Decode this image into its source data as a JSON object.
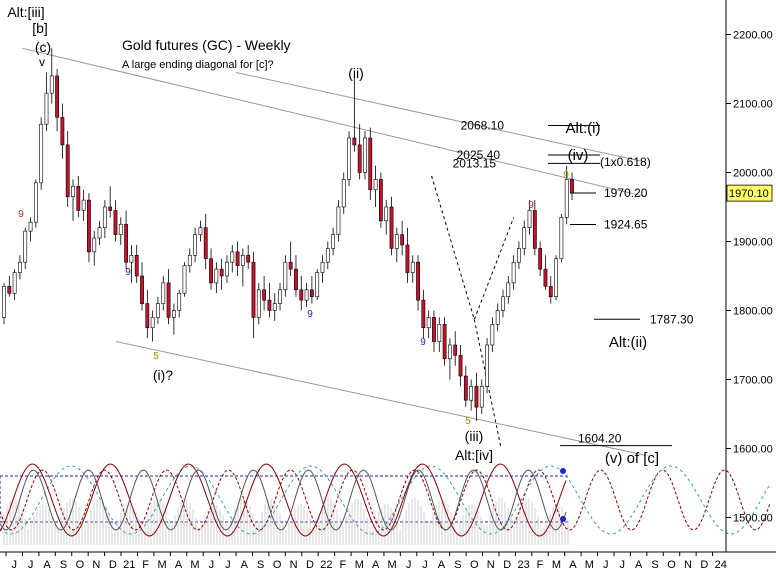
{
  "chart_data": {
    "type": "candlestick",
    "title": "Gold futures (GC) - Weekly",
    "subtitle": "A large ending diagonal for [c]?",
    "y_axis": {
      "ylim": [
        1450,
        2250
      ],
      "ticks": [
        1500,
        1600,
        1700,
        1800,
        1900,
        2000,
        2100,
        2200
      ],
      "tick_labels": [
        "1500.00",
        "1600.00",
        "1700.00",
        "1800.00",
        "1900.00",
        "2000.00",
        "2100.00",
        "2200.00"
      ],
      "last_price_label": "1970.10",
      "last_price": 1970.1
    },
    "x_axis": {
      "month_labels": [
        "J",
        "J",
        "A",
        "S",
        "O",
        "N",
        "D",
        "21",
        "F",
        "M",
        "A",
        "M",
        "J",
        "J",
        "A",
        "S",
        "O",
        "N",
        "D",
        "22",
        "F",
        "M",
        "A",
        "M",
        "J",
        "J",
        "A",
        "S",
        "O",
        "N",
        "D",
        "23",
        "F",
        "M",
        "A",
        "M",
        "J",
        "J",
        "A",
        "S",
        "O",
        "N",
        "D",
        "24"
      ]
    },
    "wave_labels": [
      {
        "text": "Alt:[iii]",
        "x": 0.0,
        "y": 2242
      },
      {
        "text": "[b]",
        "x": 0.0,
        "y": 2222
      },
      {
        "text": "(c)",
        "x": 0.5,
        "y": 2198
      },
      {
        "text": "v",
        "x": 0.5,
        "y": 2180
      },
      {
        "text": "(ii)",
        "x": 13.4,
        "y": 2158
      },
      {
        "text": "(i)?",
        "x": 6.4,
        "y": 1748
      },
      {
        "text": "(iii)",
        "x": 20.4,
        "y": 1640
      },
      {
        "text": "Alt:[iv]",
        "x": 20.4,
        "y": 1611
      },
      {
        "text": "Alt:(i)",
        "x": 26.0,
        "y": 2080
      },
      {
        "text": "(iv)",
        "x": 26.2,
        "y": 2042
      },
      {
        "text": "Alt:(ii)",
        "x": 28.0,
        "y": 1843
      },
      {
        "text": "(v) of [c]",
        "x": 28.0,
        "y": 1575
      }
    ],
    "count_labels": [
      {
        "text": "9",
        "color": "#d22222",
        "x": 0.3,
        "y": 1998
      },
      {
        "text": "9",
        "color": "#2222cc",
        "x": 5.1,
        "y": 1893
      },
      {
        "text": "5",
        "color": "#a08800",
        "x": 6.4,
        "y": 1765
      },
      {
        "text": "9",
        "color": "#2222cc",
        "x": 12.4,
        "y": 1800
      },
      {
        "text": "9",
        "color": "#2222cc",
        "x": 19.0,
        "y": 1760
      },
      {
        "text": "5",
        "color": "#a08800",
        "x": 20.4,
        "y": 1652
      },
      {
        "text": "9",
        "color": "#d22222",
        "x": 24.5,
        "y": 2012
      },
      {
        "text": "9",
        "color": "#a08800",
        "x": 25.6,
        "y": 2012
      }
    ],
    "price_targets": [
      {
        "label": "2068.10",
        "value": 2068.1
      },
      {
        "label": "2025.40",
        "value": 2025.4
      },
      {
        "label": "2013.15",
        "value": 2013.15
      },
      {
        "label": "(1x0.618)",
        "value": 2015
      },
      {
        "label": "1970.20",
        "value": 1970.2
      },
      {
        "label": "1924.65",
        "value": 1924.65
      },
      {
        "label": "1787.30",
        "value": 1787.3
      },
      {
        "label": "1604.20",
        "value": 1604.2
      }
    ],
    "channel_lines": [
      {
        "name": "upper",
        "points": [
          [
            0.5,
            2180
          ],
          [
            36.0,
            1965
          ]
        ]
      },
      {
        "name": "middle",
        "points": [
          [
            13.5,
            2145
          ],
          [
            36.0,
            2015
          ]
        ]
      },
      {
        "name": "lower",
        "points": [
          [
            6.2,
            1755
          ],
          [
            36.0,
            1590
          ]
        ]
      }
    ],
    "projection_path": [
      [
        25.4,
        1995
      ],
      [
        28.0,
        1787
      ],
      [
        30.4,
        1935
      ]
    ],
    "projection_path_2": [
      [
        28.0,
        1787
      ],
      [
        29.6,
        1604
      ]
    ],
    "ohlc": [
      [
        1790,
        1840,
        1780,
        1835
      ],
      [
        1835,
        1850,
        1820,
        1825
      ],
      [
        1825,
        1860,
        1815,
        1855
      ],
      [
        1855,
        1880,
        1845,
        1870
      ],
      [
        1870,
        1920,
        1860,
        1915
      ],
      [
        1915,
        1935,
        1900,
        1928
      ],
      [
        1928,
        1990,
        1920,
        1985
      ],
      [
        1985,
        2080,
        1975,
        2070
      ],
      [
        2070,
        2145,
        2060,
        2115
      ],
      [
        2115,
        2180,
        2100,
        2140
      ],
      [
        2140,
        2150,
        2060,
        2080
      ],
      [
        2080,
        2100,
        2020,
        2040
      ],
      [
        2040,
        2060,
        1950,
        1965
      ],
      [
        1965,
        1990,
        1930,
        1980
      ],
      [
        1980,
        1995,
        1935,
        1945
      ],
      [
        1945,
        1975,
        1930,
        1960
      ],
      [
        1960,
        1970,
        1870,
        1885
      ],
      [
        1885,
        1915,
        1865,
        1905
      ],
      [
        1905,
        1930,
        1895,
        1920
      ],
      [
        1920,
        1960,
        1905,
        1950
      ],
      [
        1950,
        1980,
        1935,
        1945
      ],
      [
        1945,
        1960,
        1900,
        1910
      ],
      [
        1910,
        1935,
        1895,
        1925
      ],
      [
        1925,
        1945,
        1860,
        1870
      ],
      [
        1870,
        1895,
        1840,
        1880
      ],
      [
        1880,
        1895,
        1840,
        1850
      ],
      [
        1850,
        1870,
        1800,
        1810
      ],
      [
        1810,
        1830,
        1760,
        1775
      ],
      [
        1775,
        1800,
        1755,
        1790
      ],
      [
        1790,
        1820,
        1780,
        1810
      ],
      [
        1810,
        1850,
        1800,
        1840
      ],
      [
        1840,
        1860,
        1780,
        1790
      ],
      [
        1790,
        1810,
        1765,
        1800
      ],
      [
        1800,
        1830,
        1790,
        1825
      ],
      [
        1825,
        1870,
        1820,
        1865
      ],
      [
        1865,
        1890,
        1855,
        1880
      ],
      [
        1880,
        1920,
        1870,
        1910
      ],
      [
        1910,
        1930,
        1900,
        1920
      ],
      [
        1920,
        1940,
        1860,
        1875
      ],
      [
        1875,
        1890,
        1830,
        1840
      ],
      [
        1840,
        1870,
        1825,
        1860
      ],
      [
        1860,
        1875,
        1830,
        1850
      ],
      [
        1850,
        1880,
        1840,
        1870
      ],
      [
        1870,
        1895,
        1855,
        1885
      ],
      [
        1885,
        1900,
        1850,
        1865
      ],
      [
        1865,
        1890,
        1835,
        1880
      ],
      [
        1880,
        1895,
        1860,
        1870
      ],
      [
        1870,
        1885,
        1760,
        1790
      ],
      [
        1790,
        1840,
        1780,
        1830
      ],
      [
        1830,
        1850,
        1800,
        1815
      ],
      [
        1815,
        1840,
        1790,
        1800
      ],
      [
        1800,
        1825,
        1785,
        1810
      ],
      [
        1810,
        1840,
        1800,
        1830
      ],
      [
        1830,
        1880,
        1820,
        1870
      ],
      [
        1870,
        1900,
        1850,
        1860
      ],
      [
        1860,
        1880,
        1820,
        1830
      ],
      [
        1830,
        1850,
        1800,
        1815
      ],
      [
        1815,
        1840,
        1805,
        1830
      ],
      [
        1830,
        1850,
        1810,
        1820
      ],
      [
        1820,
        1860,
        1815,
        1855
      ],
      [
        1855,
        1880,
        1840,
        1870
      ],
      [
        1870,
        1900,
        1860,
        1890
      ],
      [
        1890,
        1920,
        1880,
        1910
      ],
      [
        1910,
        1960,
        1900,
        1950
      ],
      [
        1950,
        2000,
        1940,
        1990
      ],
      [
        1990,
        2060,
        1980,
        2050
      ],
      [
        2050,
        2140,
        2030,
        2040
      ],
      [
        2040,
        2070,
        1990,
        2000
      ],
      [
        2000,
        2060,
        1990,
        2050
      ],
      [
        2050,
        2065,
        1960,
        1975
      ],
      [
        1975,
        2010,
        1950,
        1990
      ],
      [
        1990,
        2000,
        1920,
        1930
      ],
      [
        1930,
        1960,
        1910,
        1950
      ],
      [
        1950,
        1965,
        1880,
        1890
      ],
      [
        1890,
        1920,
        1870,
        1910
      ],
      [
        1910,
        1930,
        1880,
        1895
      ],
      [
        1895,
        1920,
        1840,
        1855
      ],
      [
        1855,
        1880,
        1840,
        1870
      ],
      [
        1870,
        1880,
        1800,
        1815
      ],
      [
        1815,
        1830,
        1760,
        1775
      ],
      [
        1775,
        1800,
        1760,
        1790
      ],
      [
        1790,
        1800,
        1740,
        1755
      ],
      [
        1755,
        1790,
        1740,
        1780
      ],
      [
        1780,
        1790,
        1720,
        1730
      ],
      [
        1730,
        1760,
        1700,
        1750
      ],
      [
        1750,
        1770,
        1720,
        1735
      ],
      [
        1735,
        1750,
        1690,
        1705
      ],
      [
        1705,
        1720,
        1660,
        1670
      ],
      [
        1670,
        1700,
        1655,
        1690
      ],
      [
        1690,
        1710,
        1640,
        1660
      ],
      [
        1660,
        1700,
        1650,
        1690
      ],
      [
        1690,
        1760,
        1680,
        1750
      ],
      [
        1750,
        1790,
        1740,
        1780
      ],
      [
        1780,
        1810,
        1770,
        1800
      ],
      [
        1800,
        1830,
        1790,
        1820
      ],
      [
        1820,
        1850,
        1810,
        1840
      ],
      [
        1840,
        1880,
        1830,
        1870
      ],
      [
        1870,
        1900,
        1860,
        1890
      ],
      [
        1890,
        1930,
        1880,
        1920
      ],
      [
        1920,
        1960,
        1910,
        1945
      ],
      [
        1945,
        1960,
        1880,
        1890
      ],
      [
        1890,
        1900,
        1850,
        1860
      ],
      [
        1860,
        1880,
        1830,
        1835
      ],
      [
        1835,
        1850,
        1810,
        1820
      ],
      [
        1820,
        1880,
        1815,
        1875
      ],
      [
        1875,
        1940,
        1870,
        1935
      ],
      [
        1935,
        2010,
        1925,
        1990
      ],
      [
        1990,
        2000,
        1960,
        1970
      ]
    ]
  }
}
